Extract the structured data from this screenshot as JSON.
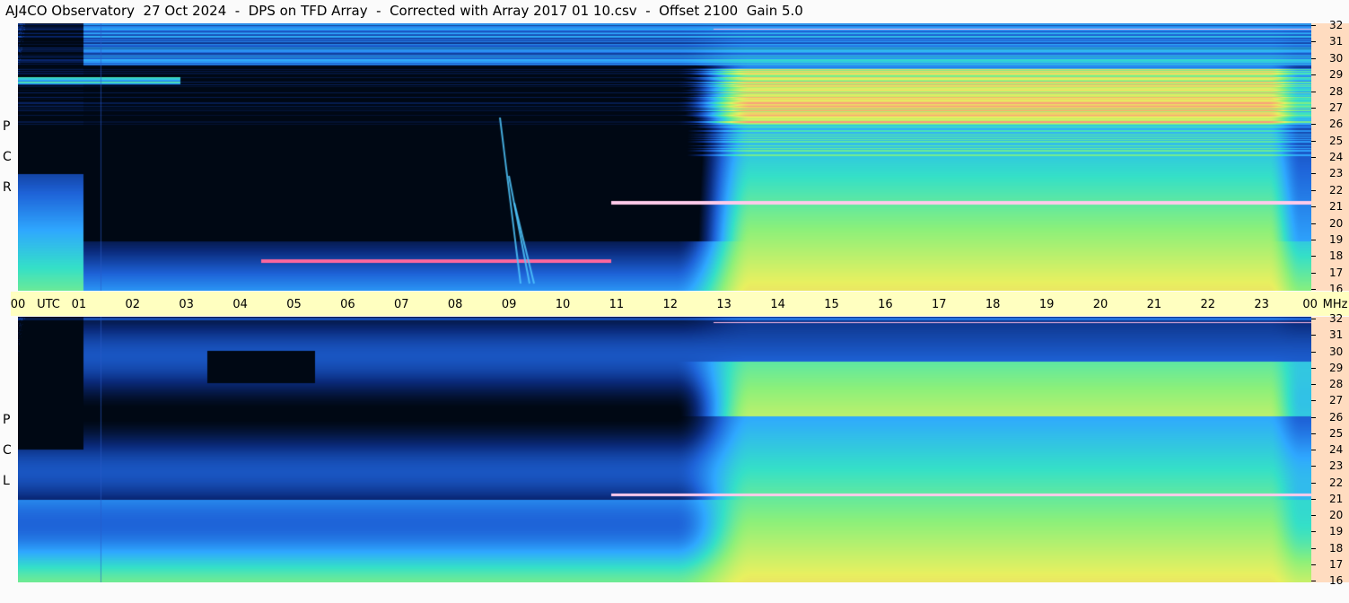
{
  "title": "AJ4CO Observatory  27 Oct 2024  -  DPS on TFD Array  -  Corrected with Array 2017 01 10.csv  -  Offset 2100  Gain 5.0",
  "chart_data": {
    "type": "heatmap",
    "time_axis": {
      "labels": [
        "00",
        "UTC",
        "01",
        "02",
        "03",
        "04",
        "05",
        "06",
        "07",
        "08",
        "09",
        "10",
        "11",
        "12",
        "13",
        "14",
        "15",
        "16",
        "17",
        "18",
        "19",
        "20",
        "21",
        "22",
        "23",
        "00",
        "MHz"
      ],
      "hours": [
        "00",
        "01",
        "02",
        "03",
        "04",
        "05",
        "06",
        "07",
        "08",
        "09",
        "10",
        "11",
        "12",
        "13",
        "14",
        "15",
        "16",
        "17",
        "18",
        "19",
        "20",
        "21",
        "22",
        "23",
        "00"
      ],
      "unit_label": "UTC",
      "freq_unit_label": "MHz"
    },
    "freq_axis": {
      "range_mhz": [
        16,
        32
      ],
      "labels": [
        "32",
        "31",
        "30",
        "29",
        "28",
        "27",
        "26",
        "25",
        "24",
        "23",
        "22",
        "21",
        "20",
        "19",
        "18",
        "17",
        "16"
      ]
    },
    "panels": [
      {
        "name": "RCP",
        "letters": [
          "P",
          "C",
          "R"
        ]
      },
      {
        "name": "LCP",
        "letters": [
          "P",
          "C",
          "L"
        ]
      }
    ],
    "colormap": [
      "#000814",
      "#0a2a7a",
      "#1e63d8",
      "#2fa8ff",
      "#34e0c8",
      "#8cf07a",
      "#e8f060",
      "#f7b070",
      "#ff3fb5",
      "#ffffff"
    ]
  }
}
